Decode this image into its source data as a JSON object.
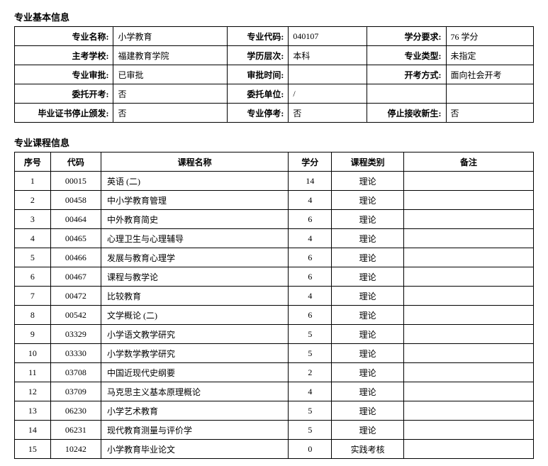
{
  "basicInfo": {
    "sectionTitle": "专业基本信息",
    "labels": {
      "majorName": "专业名称:",
      "majorCode": "专业代码:",
      "creditReq": "学分要求:",
      "hostSchool": "主考学校:",
      "eduLevel": "学历层次:",
      "majorType": "专业类型:",
      "approval": "专业审批:",
      "approvalTime": "审批时间:",
      "examMode": "开考方式:",
      "entrustExam": "委托开考:",
      "entrustUnit": "委托单位:",
      "stopCert": "毕业证书停止颁发:",
      "stopMajor": "专业停考:",
      "stopNew": "停止接收新生:"
    },
    "values": {
      "majorName": "小学教育",
      "majorCode": "040107",
      "creditReq": "76 学分",
      "hostSchool": "福建教育学院",
      "eduLevel": "本科",
      "majorType": "未指定",
      "approval": "已审批",
      "approvalTime": "",
      "examMode": "面向社会开考",
      "entrustExam": "否",
      "entrustUnit": "/",
      "stopCert": "否",
      "stopMajor": "否",
      "stopNew": "否"
    }
  },
  "courseInfo": {
    "sectionTitle": "专业课程信息",
    "headers": {
      "seq": "序号",
      "code": "代码",
      "name": "课程名称",
      "credit": "学分",
      "category": "课程类别",
      "note": "备注"
    },
    "rows": [
      {
        "seq": "1",
        "code": "00015",
        "name": "英语 (二)",
        "credit": "14",
        "category": "理论",
        "note": ""
      },
      {
        "seq": "2",
        "code": "00458",
        "name": "中小学教育管理",
        "credit": "4",
        "category": "理论",
        "note": ""
      },
      {
        "seq": "3",
        "code": "00464",
        "name": "中外教育简史",
        "credit": "6",
        "category": "理论",
        "note": ""
      },
      {
        "seq": "4",
        "code": "00465",
        "name": "心理卫生与心理辅导",
        "credit": "4",
        "category": "理论",
        "note": ""
      },
      {
        "seq": "5",
        "code": "00466",
        "name": "发展与教育心理学",
        "credit": "6",
        "category": "理论",
        "note": ""
      },
      {
        "seq": "6",
        "code": "00467",
        "name": "课程与教学论",
        "credit": "6",
        "category": "理论",
        "note": ""
      },
      {
        "seq": "7",
        "code": "00472",
        "name": "比较教育",
        "credit": "4",
        "category": "理论",
        "note": ""
      },
      {
        "seq": "8",
        "code": "00542",
        "name": "文学概论 (二)",
        "credit": "6",
        "category": "理论",
        "note": ""
      },
      {
        "seq": "9",
        "code": "03329",
        "name": "小学语文教学研究",
        "credit": "5",
        "category": "理论",
        "note": ""
      },
      {
        "seq": "10",
        "code": "03330",
        "name": "小学数学教学研究",
        "credit": "5",
        "category": "理论",
        "note": ""
      },
      {
        "seq": "11",
        "code": "03708",
        "name": "中国近现代史纲要",
        "credit": "2",
        "category": "理论",
        "note": ""
      },
      {
        "seq": "12",
        "code": "03709",
        "name": "马克思主义基本原理概论",
        "credit": "4",
        "category": "理论",
        "note": ""
      },
      {
        "seq": "13",
        "code": "06230",
        "name": "小学艺术教育",
        "credit": "5",
        "category": "理论",
        "note": ""
      },
      {
        "seq": "14",
        "code": "06231",
        "name": "现代教育测量与评价学",
        "credit": "5",
        "category": "理论",
        "note": ""
      },
      {
        "seq": "15",
        "code": "10242",
        "name": "小学教育毕业论文",
        "credit": "0",
        "category": "实践考核",
        "note": ""
      }
    ]
  },
  "layout": {
    "infoColWidths": [
      "110",
      "130",
      "70",
      "90",
      "90",
      "100"
    ],
    "courseColWidths": [
      "50",
      "70",
      "260",
      "60",
      "100",
      "180"
    ]
  }
}
